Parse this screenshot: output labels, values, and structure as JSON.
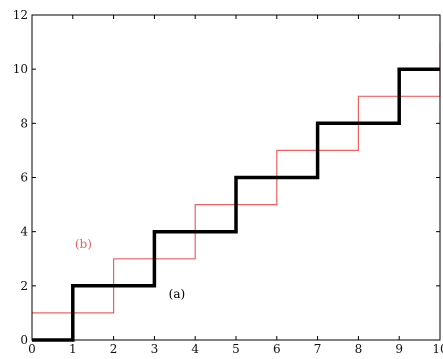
{
  "chart_data": {
    "type": "line",
    "title": "",
    "xlabel": "",
    "ylabel": "",
    "xlim": [
      0,
      10
    ],
    "ylim": [
      0,
      12
    ],
    "x_ticks": [
      "0",
      "1",
      "2",
      "3",
      "4",
      "5",
      "6",
      "7",
      "8",
      "9",
      "10"
    ],
    "y_ticks": [
      "0",
      "2",
      "4",
      "6",
      "8",
      "10",
      "12"
    ],
    "grid": false,
    "series": [
      {
        "label": "(a)",
        "step": true,
        "color": "#000000",
        "x": [
          0,
          1,
          1,
          3,
          3,
          5,
          5,
          7,
          7,
          9,
          9,
          10
        ],
        "y": [
          0,
          0,
          2,
          2,
          4,
          4,
          6,
          6,
          8,
          8,
          10,
          10
        ]
      },
      {
        "label": "(b)",
        "step": true,
        "color": "#f06060",
        "x": [
          0,
          2,
          2,
          3,
          3,
          4,
          4,
          5,
          5,
          6,
          6,
          7,
          7,
          8,
          8,
          9,
          9,
          10,
          10
        ],
        "y": [
          1,
          1,
          3,
          3,
          3,
          3,
          5,
          5,
          5,
          5,
          7,
          7,
          7,
          7,
          9,
          9,
          9,
          9,
          11
        ]
      }
    ],
    "annotations": [
      {
        "text": "(a)",
        "x": 3.35,
        "y": 1.55,
        "color": "#000000"
      },
      {
        "text": "(b)",
        "x": 1.05,
        "y": 3.4,
        "color": "#f06060"
      }
    ]
  }
}
